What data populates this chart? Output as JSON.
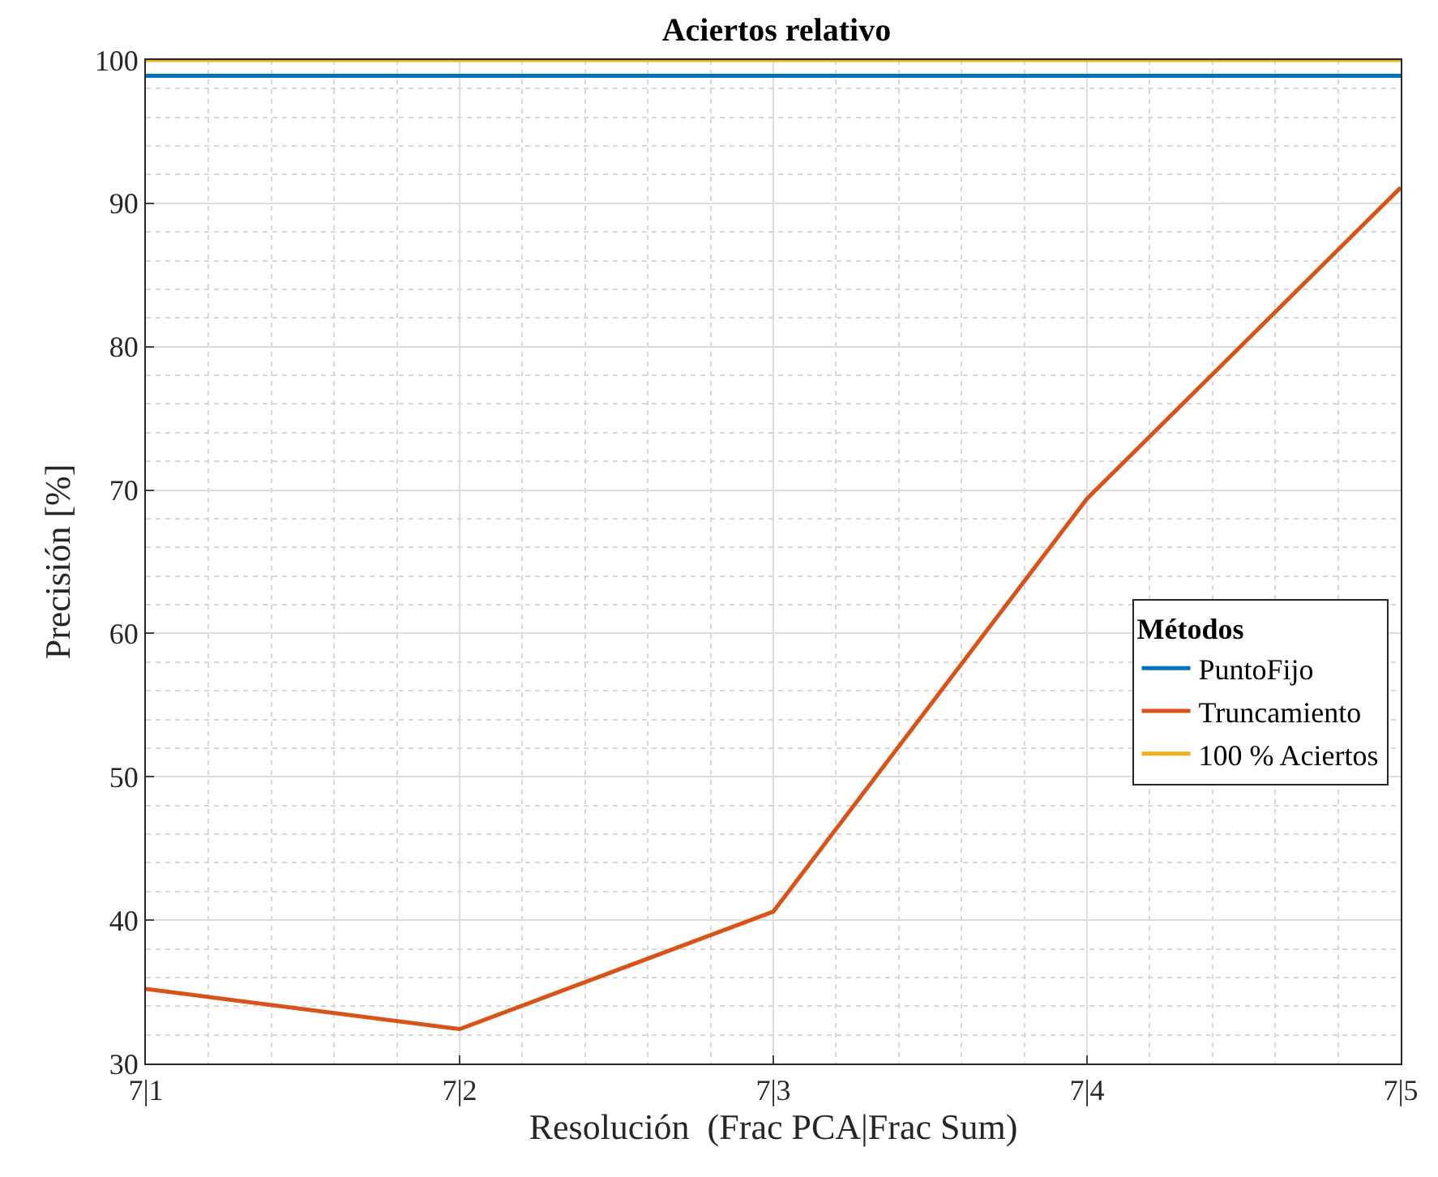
{
  "chart_data": {
    "type": "line",
    "title": "Aciertos relativo",
    "xlabel": "Resolución  (Frac PCA|Frac Sum)",
    "ylabel": "Precisión [%]",
    "legend_title": "Métodos",
    "categories": [
      "7|1",
      "7|2",
      "7|3",
      "7|4",
      "7|5"
    ],
    "series": [
      {
        "name": "PuntoFijo",
        "color": "#0072bd",
        "values": [
          98.9,
          98.9,
          98.9,
          98.9,
          98.9
        ]
      },
      {
        "name": "Truncamiento",
        "color": "#d95319",
        "values": [
          35.2,
          32.4,
          40.6,
          69.4,
          91.1
        ]
      },
      {
        "name": "100 % Aciertos",
        "color": "#edb120",
        "values": [
          100,
          100,
          100,
          100,
          100
        ]
      }
    ],
    "ylim": [
      30,
      100
    ],
    "yticks": [
      30,
      40,
      50,
      60,
      70,
      80,
      90,
      100
    ],
    "grid": true,
    "legend": "right",
    "marker": "none",
    "line_style": "solid"
  }
}
